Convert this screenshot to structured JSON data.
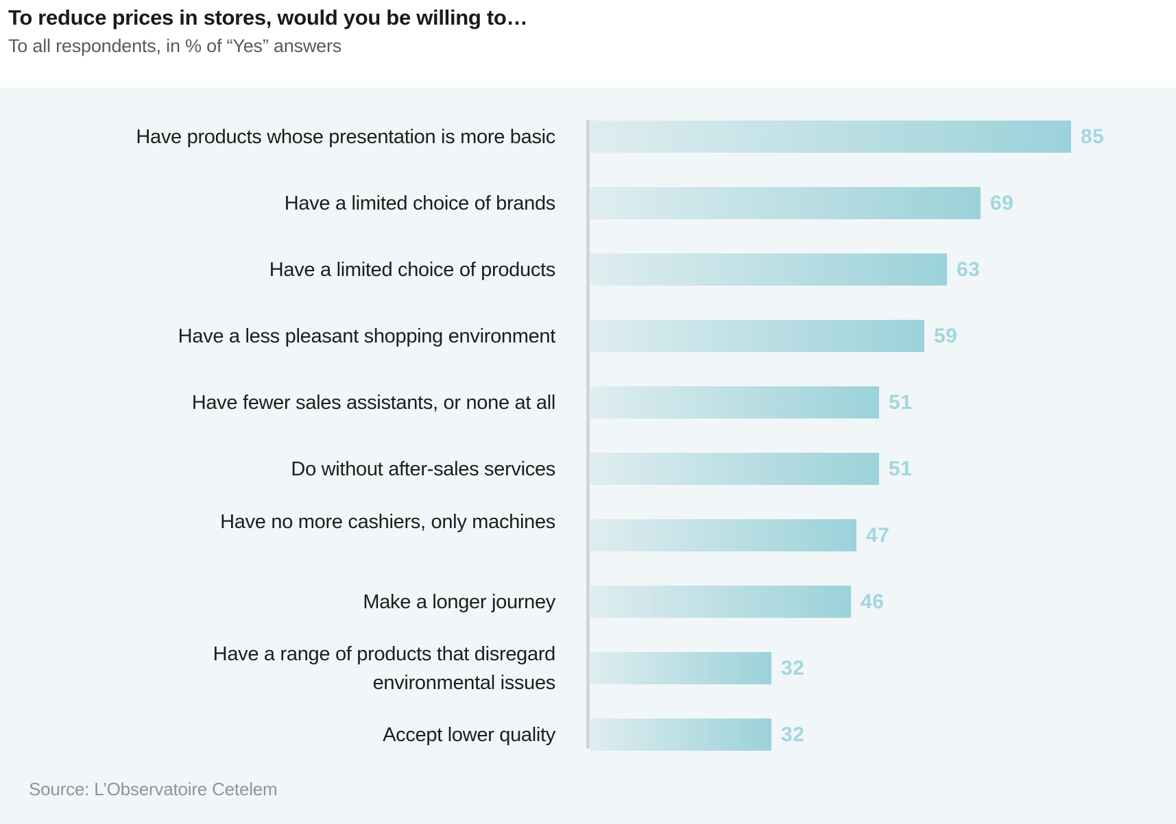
{
  "header": {
    "title": "To reduce prices in stores, would you be willing to…",
    "subtitle": "To all respondents, in % of “Yes” answers"
  },
  "chart_data": {
    "type": "bar",
    "orientation": "horizontal",
    "title": "To reduce prices in stores, would you be willing to…",
    "subtitle": "To all respondents, in % of “Yes” answers",
    "unit": "% of “Yes” answers",
    "xlabel": "",
    "ylabel": "",
    "xlim": [
      0,
      100
    ],
    "grid": false,
    "legend": false,
    "categories": [
      "Have products whose presentation is more basic",
      "Have a limited choice of brands",
      "Have a limited choice of products",
      "Have a less pleasant shopping environment",
      "Have fewer sales assistants, or none at all",
      "Do without after-sales services",
      "Have no more cashiers, only machines",
      "Make a longer journey",
      "Have a range of products that disregard environmental issues",
      "Accept lower quality"
    ],
    "values": [
      85,
      69,
      63,
      59,
      51,
      51,
      47,
      46,
      32,
      32
    ],
    "colors": {
      "bar_gradient_start": "#dfedf0",
      "bar_gradient_end": "#9bd2d9",
      "value_label": "#a3d6dd",
      "plot_background": "#f1f6f9",
      "axis_line": "#d2d3d5",
      "label_text": "#1d1d1b"
    }
  },
  "footer": {
    "source": "Source: L’Observatoire Cetelem"
  }
}
